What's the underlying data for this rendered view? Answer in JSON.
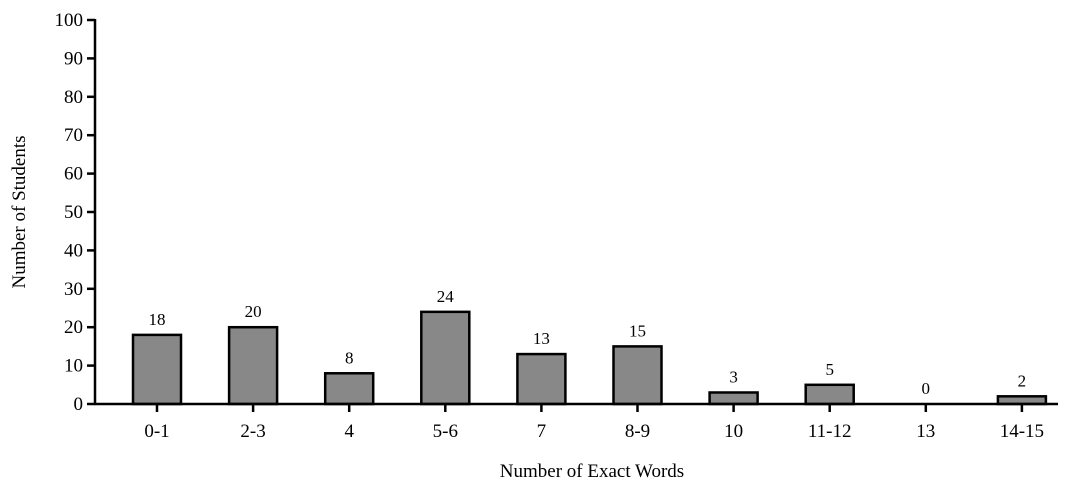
{
  "chart_data": {
    "type": "bar",
    "categories": [
      "0-1",
      "2-3",
      "4",
      "5-6",
      "7",
      "8-9",
      "10",
      "11-12",
      "13",
      "14-15"
    ],
    "values": [
      18,
      20,
      8,
      24,
      13,
      15,
      3,
      5,
      0,
      2
    ],
    "data_labels": [
      "18",
      "20",
      "8",
      "24",
      "13",
      "15",
      "3",
      "5",
      "0",
      "2"
    ],
    "title": "",
    "xlabel": "Number of Exact Words",
    "ylabel": "Number of Students",
    "ylim": [
      0,
      100
    ],
    "yticks": [
      0,
      10,
      20,
      30,
      40,
      50,
      60,
      70,
      80,
      90,
      100
    ],
    "grid": false,
    "colors": {
      "bar_fill": "#888888",
      "bar_stroke": "#000000",
      "axis": "#000000"
    }
  }
}
